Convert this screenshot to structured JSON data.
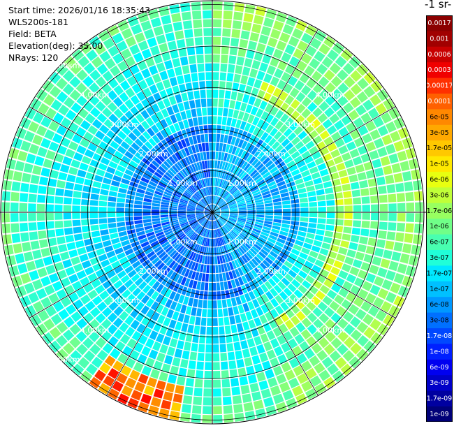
{
  "info": {
    "start_time": "Start time: 2026/01/16 18:35:43",
    "instrument": "WLS200s-181",
    "field": "Field: BETA",
    "elevation": "Elevation(deg): 35.00",
    "nrays": "NRays: 120"
  },
  "colorbar": {
    "title": "-1 sr-",
    "labels": [
      "0.0017",
      "0.001",
      "0.0006",
      "0.0003",
      "0.00017",
      "0.0001",
      "6e-05",
      "3e-05",
      "1.7e-05",
      "1e-05",
      "6e-06",
      "3e-06",
      "1.7e-06",
      "1e-06",
      "6e-07",
      "3e-07",
      "1.7e-07",
      "1e-07",
      "6e-08",
      "3e-08",
      "1.7e-08",
      "1e-08",
      "6e-09",
      "3e-09",
      "1.7e-09",
      "1e-09"
    ],
    "colors": [
      "#8b0000",
      "#a10000",
      "#c80000",
      "#f00000",
      "#ff3000",
      "#ff6000",
      "#ff8800",
      "#ffa800",
      "#ffc800",
      "#ffe800",
      "#e8ff10",
      "#c0ff38",
      "#98ff60",
      "#70ff88",
      "#48ffb0",
      "#20ffd8",
      "#00e8ff",
      "#00c0ff",
      "#0098ff",
      "#0070ff",
      "#0048ff",
      "#0020ff",
      "#0000f0",
      "#0000c8",
      "#0000a0",
      "#000078"
    ]
  },
  "chart_data": {
    "type": "heatmap",
    "projection": "polar (PPI scan)",
    "field": "BETA",
    "elevation_deg": 35.0,
    "n_rays": 120,
    "range_rings_km": [
      1.0,
      2.0,
      3.0,
      4.0,
      5.0
    ],
    "ring_labels": [
      "1.00km",
      "2.00km",
      "3.00km",
      "4.00km",
      "5.00km"
    ],
    "max_range_km": 5.1,
    "colorbar_ticks": [
      "0.0017",
      "0.001",
      "0.0006",
      "0.0003",
      "0.00017",
      "0.0001",
      "6e-05",
      "3e-05",
      "1.7e-05",
      "1e-05",
      "6e-06",
      "3e-06",
      "1.7e-06",
      "1e-06",
      "6e-07",
      "3e-07",
      "1.7e-07",
      "1e-07",
      "6e-08",
      "3e-08",
      "1.7e-08",
      "1e-08",
      "6e-09",
      "3e-09",
      "1.7e-09",
      "1e-09"
    ],
    "grid": true
  }
}
